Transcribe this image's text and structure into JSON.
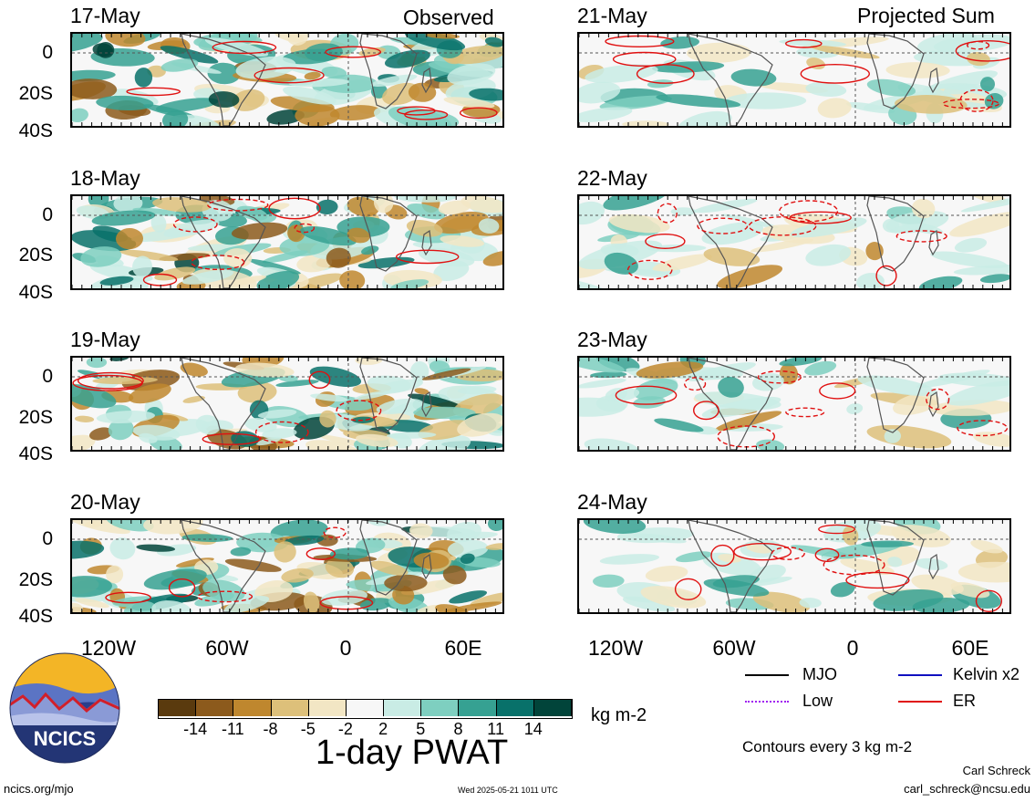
{
  "columns": {
    "observed_title": "Observed",
    "projected_title": "Projected Sum"
  },
  "observed_panels": [
    {
      "date": "17-May"
    },
    {
      "date": "18-May"
    },
    {
      "date": "19-May"
    },
    {
      "date": "20-May"
    }
  ],
  "projected_panels": [
    {
      "date": "21-May"
    },
    {
      "date": "22-May"
    },
    {
      "date": "23-May"
    },
    {
      "date": "24-May"
    }
  ],
  "y_ticks": [
    "0",
    "20S",
    "40S"
  ],
  "x_ticks": [
    "120W",
    "60W",
    "0",
    "60E"
  ],
  "colorbar": {
    "colors": [
      "#5a3a0e",
      "#8c5a1c",
      "#bf872e",
      "#ddc07a",
      "#f2e6c4",
      "#f7f7f7",
      "#c9ece5",
      "#7ecfc0",
      "#36a192",
      "#08716a",
      "#01443a"
    ],
    "labels": [
      "-14",
      "-11",
      "-8",
      "-5",
      "-2",
      "2",
      "5",
      "8",
      "11",
      "14"
    ],
    "units": "kg m-2",
    "title": "1-day PWAT"
  },
  "legend": {
    "items": [
      {
        "label": "MJO",
        "color": "#000000",
        "style": "solid"
      },
      {
        "label": "Kelvin x2",
        "color": "#1010c0",
        "style": "solid"
      },
      {
        "label": "Low",
        "color": "#a020f0",
        "style": "dotted"
      },
      {
        "label": "ER",
        "color": "#e01010",
        "style": "solid"
      }
    ],
    "contour_note": "Contours every 3 kg m-2"
  },
  "footer": {
    "logo_text": "NCICS",
    "site": "ncics.org/mjo",
    "timestamp": "Wed 2025-05-21 1011 UTC",
    "author": "Carl Schreck",
    "email": "carl_schreck@ncsu.edu"
  }
}
